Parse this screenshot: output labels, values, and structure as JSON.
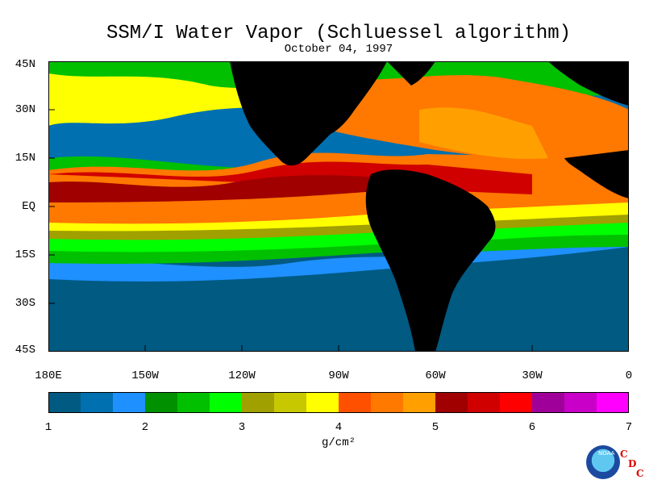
{
  "title": "SSM/I Water Vapor (Schluessel algorithm)",
  "subtitle": "October 04, 1997",
  "map": {
    "lat_labels": [
      "45N",
      "30N",
      "15N",
      "EQ",
      "15S",
      "30S",
      "45S"
    ],
    "lon_labels": [
      "180E",
      "150W",
      "120W",
      "90W",
      "60W",
      "30W",
      "0"
    ],
    "land_color": "#000000"
  },
  "colorbar": {
    "ticks": [
      "1",
      "2",
      "3",
      "4",
      "5",
      "6",
      "7"
    ],
    "units": "g/cm²",
    "colors": [
      "#005a82",
      "#0070b0",
      "#1e90ff",
      "#009000",
      "#00c000",
      "#00ff00",
      "#a0a000",
      "#c8c800",
      "#ffff00",
      "#ff5000",
      "#ff7800",
      "#ffa000",
      "#a00000",
      "#d00000",
      "#ff0000",
      "#a0009a",
      "#c800c8",
      "#ff00ff"
    ]
  },
  "logo": {
    "org": "NOAA",
    "cdc_letters": [
      "C",
      "D",
      "C"
    ]
  }
}
